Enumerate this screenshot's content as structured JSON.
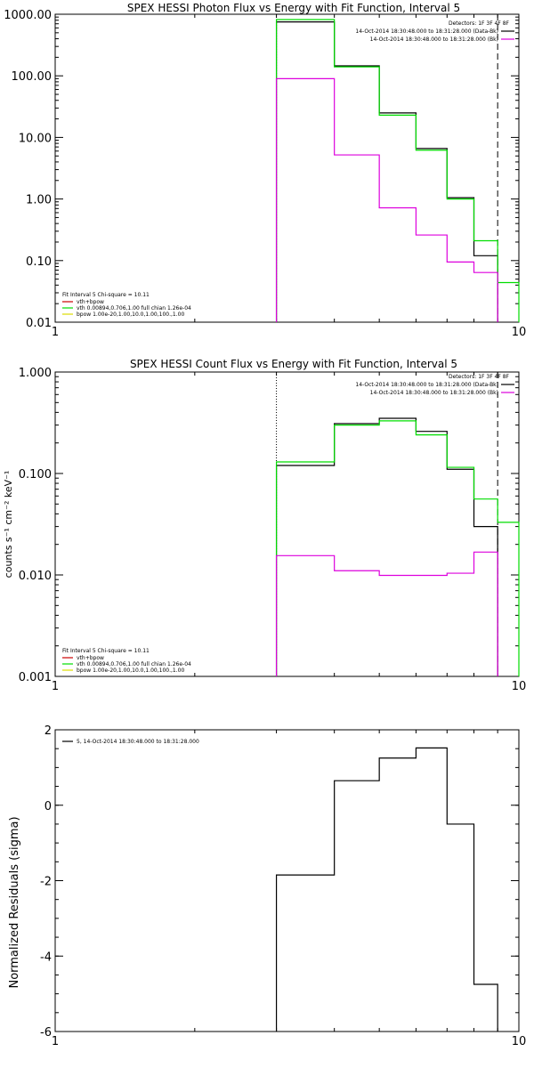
{
  "colors": {
    "data": "#000000",
    "total": "#00dd00",
    "bkg": "#dd00dd",
    "vth": "#cc0000",
    "bpow": "#dddd00"
  },
  "chart_data": [
    {
      "type": "line",
      "title": "SPEX HESSI Photon Flux vs Energy with Fit Function, Interval 5",
      "xscale": "log",
      "yscale": "log",
      "xlim": [
        1,
        10
      ],
      "ylim": [
        0.01,
        1000
      ],
      "xticks": [
        1,
        10
      ],
      "xtick_labels": [
        "1",
        "10"
      ],
      "yticks": [
        0.01,
        0.1,
        1,
        10,
        100,
        1000
      ],
      "ytick_labels": [
        "0.01",
        "0.10",
        "1.00",
        "10.00",
        "100.00",
        "1000.00"
      ],
      "vlines": [
        {
          "x": 3.0,
          "style": "dotted",
          "color": "#000000"
        },
        {
          "x": 9.0,
          "style": "dashed",
          "color": "#000000"
        }
      ],
      "legend_top": [
        "Detectors: 1F 3F 4F 8F",
        "14-Oct-2014 18:30:48.000 to 18:31:28.000 (Data-Bk)",
        "14-Oct-2014 18:30:48.000 to 18:31:28.000 (Bk)"
      ],
      "legend_bottom": [
        "Fit Interval 5   Chi-square = 10.11",
        "vth+bpow",
        "vth 0.00894,0.706,1.00  full chian 1.26e-04",
        "bpow 1.00e-20,1.00,10.0,1.00,100.,1.00"
      ],
      "series": [
        {
          "role": "data-minus-bkg",
          "color": "#000000",
          "edges": [
            3.0,
            4.0,
            5.0,
            6.0,
            7.0,
            8.0,
            9.0
          ],
          "values": [
            750,
            145,
            25,
            6.6,
            1.05,
            0.12
          ]
        },
        {
          "role": "model",
          "color": "#00dd00",
          "edges": [
            3.0,
            4.0,
            5.0,
            6.0,
            7.0,
            8.0,
            9.0,
            10.0
          ],
          "values": [
            820,
            140,
            23,
            6.2,
            1.0,
            0.21,
            0.044
          ]
        },
        {
          "role": "background",
          "color": "#dd00dd",
          "edges": [
            3.0,
            4.0,
            5.0,
            6.0,
            7.0,
            8.0,
            9.0
          ],
          "values": [
            90,
            5.2,
            0.72,
            0.26,
            0.095,
            0.064
          ]
        }
      ]
    },
    {
      "type": "line",
      "title": "SPEX HESSI Count Flux vs Energy with Fit Function, Interval 5",
      "ylabel": "counts s⁻¹ cm⁻² keV⁻¹",
      "xscale": "log",
      "yscale": "log",
      "xlim": [
        1,
        10
      ],
      "ylim": [
        0.001,
        1
      ],
      "xticks": [
        1,
        10
      ],
      "xtick_labels": [
        "1",
        "10"
      ],
      "yticks": [
        0.001,
        0.01,
        0.1,
        1
      ],
      "ytick_labels": [
        "0.001",
        "0.010",
        "0.100",
        "1.000"
      ],
      "vlines": [
        {
          "x": 3.0,
          "style": "dotted",
          "color": "#000000"
        },
        {
          "x": 9.0,
          "style": "dashed",
          "color": "#000000"
        }
      ],
      "legend_top": [
        "Detectors: 1F 3F 4F 8F",
        "14-Oct-2014 18:30:48.000 to 18:31:28.000 (Data-Bk)",
        "14-Oct-2014 18:30:48.000 to 18:31:28.000 (Bk)"
      ],
      "legend_bottom": [
        "Fit Interval 5   Chi-square = 10.11",
        "vth+bpow",
        "vth 0.00894,0.706,1.00  full chian 1.26e-04",
        "bpow 1.00e-20,1.00,10.0,1.00,100.,1.00"
      ],
      "series": [
        {
          "role": "data-minus-bkg",
          "color": "#000000",
          "edges": [
            3.0,
            4.0,
            5.0,
            6.0,
            7.0,
            8.0,
            9.0
          ],
          "values": [
            0.12,
            0.31,
            0.35,
            0.26,
            0.11,
            0.03
          ]
        },
        {
          "role": "model",
          "color": "#00dd00",
          "edges": [
            3.0,
            4.0,
            5.0,
            6.0,
            7.0,
            8.0,
            9.0,
            10.0
          ],
          "values": [
            0.13,
            0.3,
            0.33,
            0.24,
            0.115,
            0.056,
            0.033
          ]
        },
        {
          "role": "background",
          "color": "#dd00dd",
          "edges": [
            3.0,
            4.0,
            5.0,
            6.0,
            7.0,
            8.0,
            9.0
          ],
          "values": [
            0.0155,
            0.011,
            0.0099,
            0.0099,
            0.0104,
            0.0168
          ]
        }
      ]
    },
    {
      "type": "line",
      "title": "",
      "ylabel": "Normalized Residuals (sigma)",
      "xscale": "log",
      "yscale": "linear",
      "xlim": [
        1,
        10
      ],
      "ylim": [
        -6,
        2
      ],
      "xticks": [
        1,
        10
      ],
      "xtick_labels": [
        "1",
        "10"
      ],
      "yticks": [
        -6,
        -4,
        -2,
        0,
        2
      ],
      "ytick_labels": [
        "-6",
        "-4",
        "-2",
        "0",
        "2"
      ],
      "legend_top": [
        "5, 14-Oct-2014 18:30:48.000 to 18:31:28.000"
      ],
      "series": [
        {
          "role": "residuals",
          "color": "#000000",
          "edges": [
            3.0,
            4.0,
            5.0,
            6.0,
            7.0,
            8.0,
            9.0
          ],
          "values": [
            -1.85,
            0.65,
            1.25,
            1.52,
            -0.5,
            -4.75
          ]
        }
      ]
    }
  ]
}
